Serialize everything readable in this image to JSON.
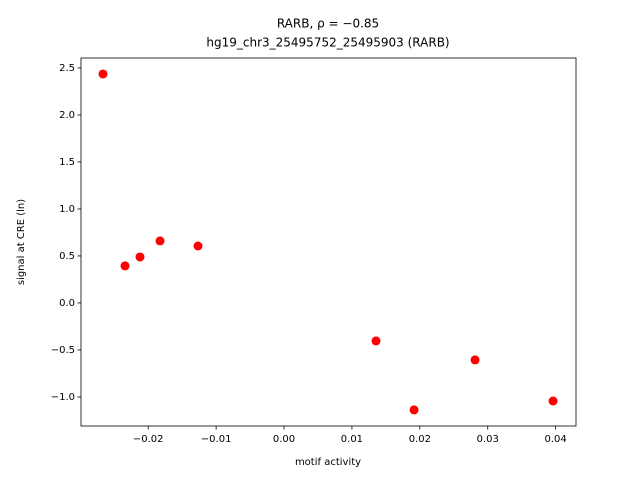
{
  "chart_data": {
    "type": "scatter",
    "title": "RARB, ρ = −0.85",
    "subtitle": "hg19_chr3_25495752_25495903 (RARB)",
    "x_label": "motif activity",
    "y_label": "signal at CRE (ln)",
    "series": [
      {
        "color": "#ff0000",
        "x": [
          -0.02666,
          -0.02342,
          -0.02121,
          -0.01826,
          -0.01267,
          0.01355,
          0.01915,
          0.02813,
          0.03962
        ],
        "values": [
          2.436,
          0.394,
          0.489,
          0.66,
          0.606,
          -0.404,
          -1.138,
          -0.606,
          -1.043
        ]
      }
    ],
    "xlim": [
      -0.0299,
      0.043
    ],
    "xticks": [
      {
        "value": -0.02,
        "label": "−0.02"
      },
      {
        "value": -0.01,
        "label": "−0.01"
      },
      {
        "value": 0,
        "label": "0.00"
      },
      0.01,
      0.02,
      0.03,
      0.04
    ],
    "ylim": [
      -1.309,
      2.606
    ],
    "yticks": [
      {
        "value": -1,
        "label": "−1.0"
      },
      {
        "value": -0.5,
        "label": "−0.5"
      },
      {
        "value": 0,
        "label": "0.0"
      },
      0.5,
      {
        "value": 1,
        "label": "1.0"
      },
      1.5,
      {
        "value": 2,
        "label": "2.0"
      },
      2.5
    ]
  }
}
